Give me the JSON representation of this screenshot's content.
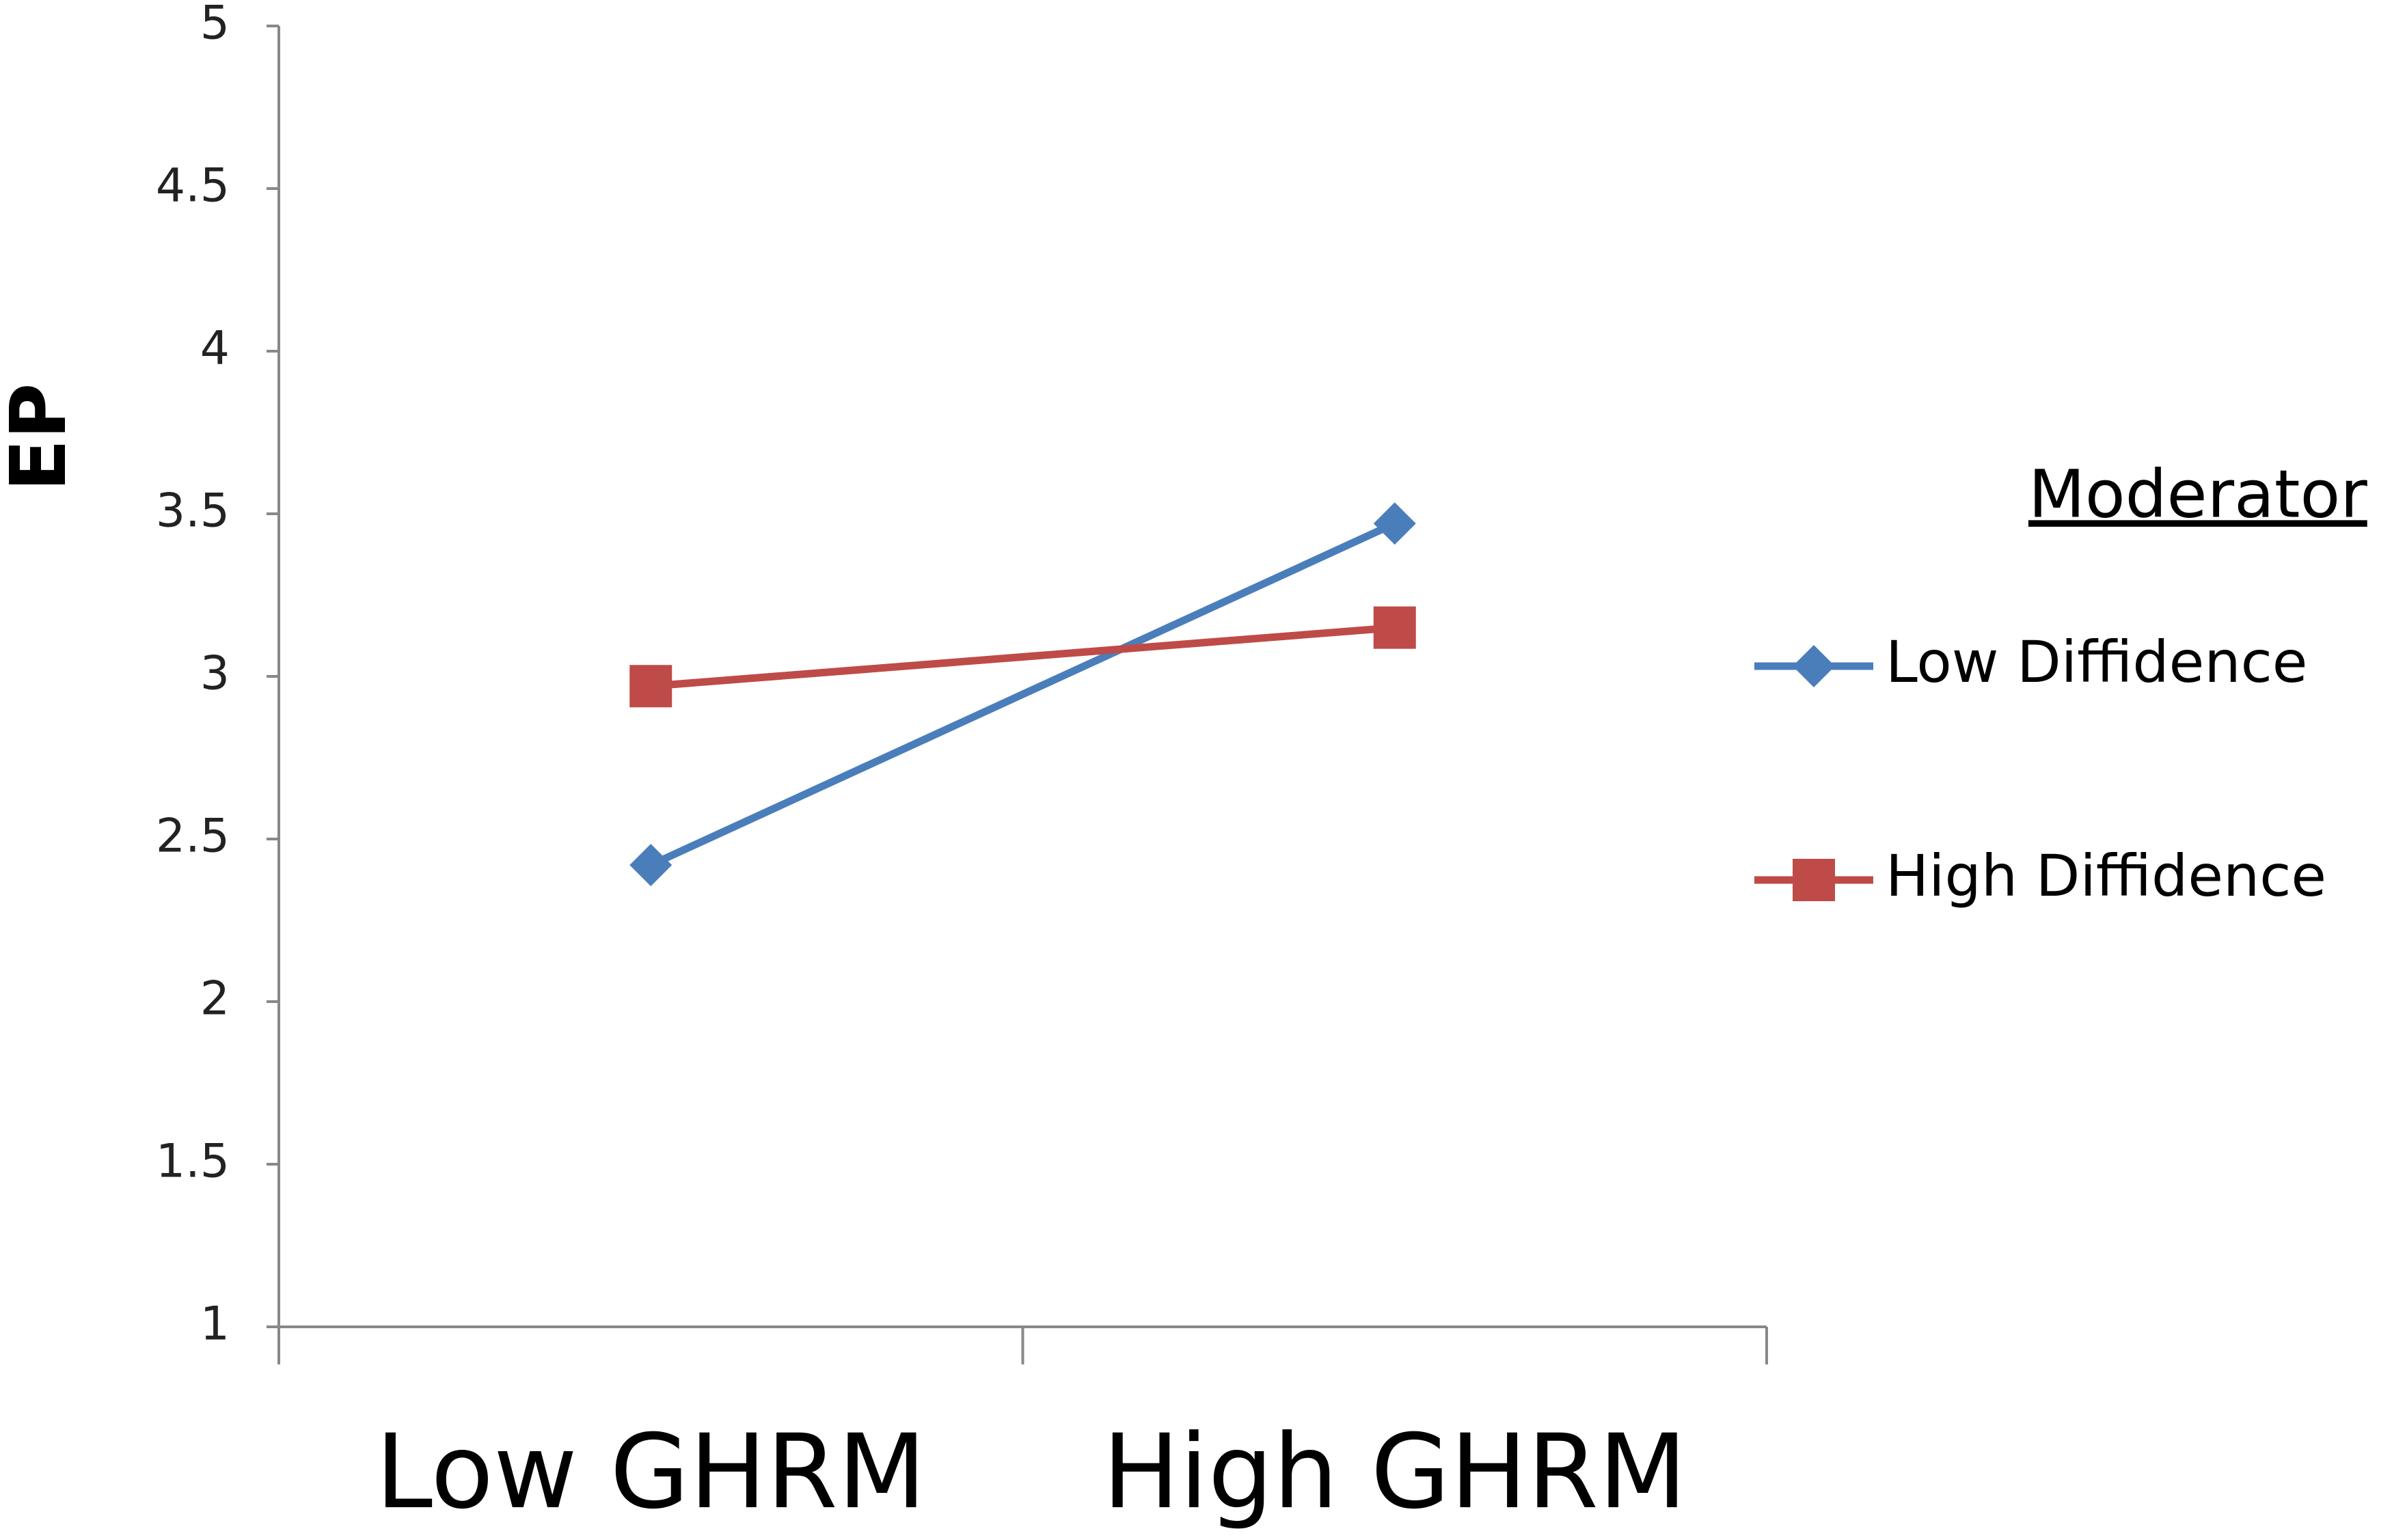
{
  "chart_data": {
    "type": "line",
    "y_label": "EP",
    "categories": [
      "Low GHRM",
      "High GHRM"
    ],
    "series": [
      {
        "name": "Low Diffidence",
        "color": "#4a7ebb",
        "marker": "diamond",
        "values": [
          2.42,
          3.47
        ]
      },
      {
        "name": "High Diffidence",
        "color": "#be4b48",
        "marker": "square",
        "values": [
          2.97,
          3.15
        ]
      }
    ],
    "ylim": [
      1,
      5
    ],
    "yticks": [
      1,
      1.5,
      2,
      2.5,
      3,
      3.5,
      4,
      4.5,
      5
    ],
    "grid": false,
    "legend": "right",
    "legend_title": "Moderator"
  }
}
